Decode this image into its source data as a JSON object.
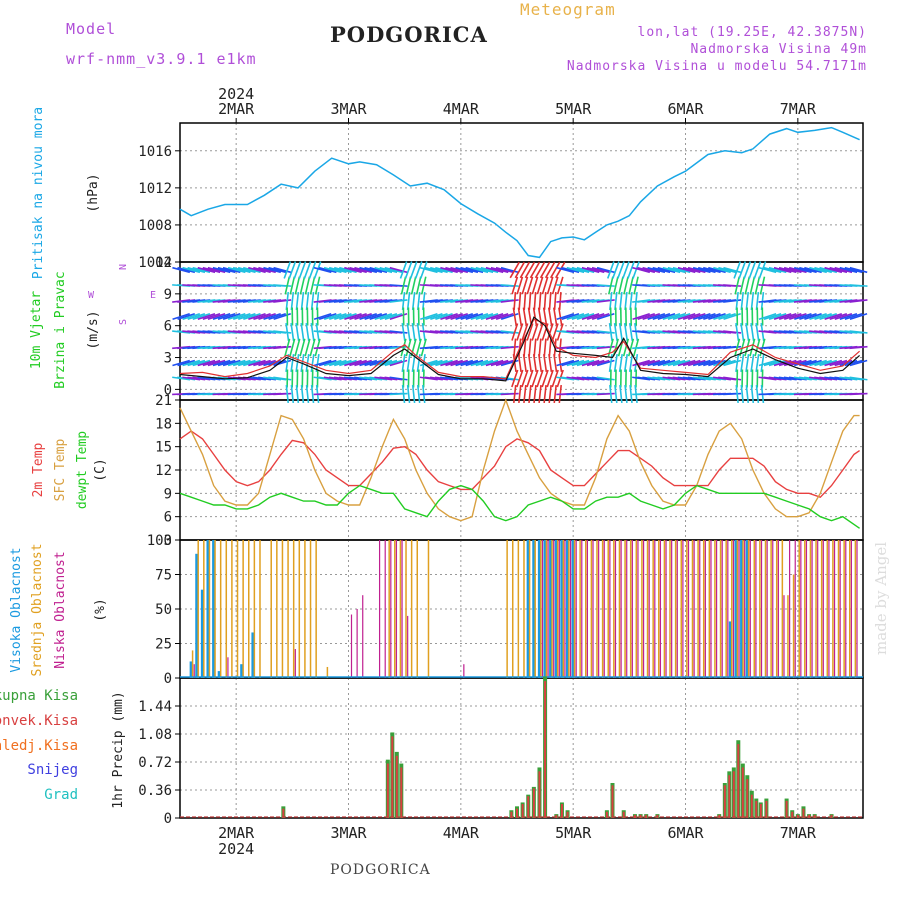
{
  "header": {
    "model_label": "Model",
    "model_name": "wrf-nmm_v3.9.1 e1km",
    "title": "PODGORICA",
    "meteogram": "Meteogram",
    "lonlat": "lon,lat (19.25E, 42.3875N)",
    "elevation": "Nadmorska Visina 49m",
    "model_elevation": "Nadmorska Visina u modelu 54.7171m"
  },
  "footer": {
    "station": "PODGORICA",
    "credit": "made by Angel"
  },
  "colors": {
    "pressure": "#1aa7e6",
    "temp2m": "#e84040",
    "sfc_temp": "#d8a040",
    "dewpt": "#22cc22",
    "high_cloud": "#1a9ae0",
    "mid_cloud": "#e0a020",
    "low_cloud": "#c02090",
    "total_precip": "#3aa03a",
    "convective": "#d84040",
    "frozen": "#f07020",
    "snow": "#4040e0",
    "hail": "#20c0c0"
  },
  "time_axis": {
    "year": "2024",
    "days": [
      "2MAR",
      "3MAR",
      "4MAR",
      "5MAR",
      "6MAR",
      "7MAR"
    ]
  },
  "chart_data": [
    {
      "type": "line",
      "panel": "pressure",
      "ylabel": "Pritisak na nivou mora",
      "unit": "(hPa)",
      "ylim": [
        1004,
        1019
      ],
      "yticks": [
        1004,
        1008,
        1012,
        1016
      ],
      "x_days": [
        1.5,
        1.6,
        1.75,
        1.9,
        2.1,
        2.25,
        2.4,
        2.55,
        2.7,
        2.85,
        3.0,
        3.1,
        3.25,
        3.4,
        3.55,
        3.7,
        3.85,
        4.0,
        4.15,
        4.3,
        4.4,
        4.5,
        4.6,
        4.7,
        4.8,
        4.9,
        5.0,
        5.1,
        5.2,
        5.3,
        5.4,
        5.5,
        5.6,
        5.75,
        5.9,
        6.0,
        6.2,
        6.35,
        6.5,
        6.6,
        6.75,
        6.9,
        7.0,
        7.15,
        7.3,
        7.4,
        7.55
      ],
      "series": [
        {
          "values": [
            1009.7,
            1009.0,
            1009.7,
            1010.2,
            1010.2,
            1011.2,
            1012.4,
            1012.0,
            1013.8,
            1015.2,
            1014.6,
            1014.8,
            1014.5,
            1013.4,
            1012.2,
            1012.5,
            1011.8,
            1010.3,
            1009.2,
            1008.2,
            1007.2,
            1006.3,
            1004.7,
            1004.5,
            1006.2,
            1006.6,
            1006.7,
            1006.4,
            1007.2,
            1008.0,
            1008.4,
            1009.0,
            1010.5,
            1012.2,
            1013.2,
            1013.8,
            1015.6,
            1016.0,
            1015.8,
            1016.2,
            1017.8,
            1018.4,
            1018.0,
            1018.2,
            1018.5,
            1018.0,
            1017.2
          ]
        }
      ]
    },
    {
      "type": "line",
      "panel": "wind",
      "ylabel": "10m Vjetar",
      "ylabel2": "Brzina i Pravac",
      "unit": "(m/s)",
      "compass": [
        "W",
        "N",
        "E",
        "S"
      ],
      "ylim": [
        -1,
        12
      ],
      "yticks": [
        0,
        3,
        6,
        9,
        12
      ],
      "x_days": [
        1.5,
        1.7,
        1.9,
        2.1,
        2.3,
        2.45,
        2.6,
        2.8,
        3.0,
        3.2,
        3.4,
        3.5,
        3.6,
        3.8,
        4.0,
        4.2,
        4.4,
        4.55,
        4.65,
        4.75,
        4.85,
        5.0,
        5.2,
        5.35,
        5.45,
        5.6,
        5.8,
        6.0,
        6.2,
        6.4,
        6.6,
        6.8,
        7.0,
        7.2,
        7.4,
        7.55
      ],
      "series": [
        {
          "values": [
            1.5,
            1.6,
            1.2,
            1.5,
            2.2,
            3.2,
            2.6,
            1.8,
            1.5,
            1.8,
            3.6,
            4.2,
            3.2,
            1.6,
            1.2,
            1.2,
            1.0,
            4.5,
            6.6,
            6.2,
            4.0,
            3.2,
            3.0,
            3.5,
            4.5,
            2.0,
            1.8,
            1.6,
            1.4,
            3.5,
            4.2,
            3.0,
            2.4,
            1.8,
            2.2,
            3.6
          ]
        },
        {
          "values": [
            1.4,
            1.2,
            1.0,
            1.1,
            1.8,
            3.0,
            2.4,
            1.5,
            1.3,
            1.5,
            3.2,
            3.8,
            3.0,
            1.4,
            1.0,
            1.0,
            0.8,
            4.2,
            6.8,
            6.0,
            3.6,
            3.4,
            3.2,
            3.0,
            4.8,
            1.8,
            1.5,
            1.4,
            1.2,
            3.0,
            3.8,
            2.8,
            2.0,
            1.5,
            1.8,
            3.2
          ]
        }
      ]
    },
    {
      "type": "line",
      "panel": "temperature",
      "ylabel": "2m Temp",
      "ylabel2": "SFC Temp",
      "ylabel3": "dewpt Temp",
      "unit": "(C)",
      "ylim": [
        3,
        21
      ],
      "yticks": [
        3,
        6,
        9,
        12,
        15,
        18,
        21
      ],
      "x_days": [
        1.5,
        1.6,
        1.7,
        1.8,
        1.9,
        2.0,
        2.1,
        2.2,
        2.3,
        2.4,
        2.5,
        2.6,
        2.7,
        2.8,
        2.9,
        3.0,
        3.1,
        3.2,
        3.3,
        3.4,
        3.5,
        3.6,
        3.7,
        3.8,
        3.9,
        4.0,
        4.1,
        4.2,
        4.3,
        4.4,
        4.5,
        4.6,
        4.7,
        4.8,
        4.9,
        5.0,
        5.1,
        5.2,
        5.3,
        5.4,
        5.5,
        5.6,
        5.7,
        5.8,
        5.9,
        6.0,
        6.1,
        6.2,
        6.3,
        6.4,
        6.5,
        6.6,
        6.7,
        6.8,
        6.9,
        7.0,
        7.1,
        7.2,
        7.3,
        7.4,
        7.5,
        7.55
      ],
      "series": [
        {
          "name": "2m Temp",
          "values": [
            16,
            17,
            16,
            14,
            12,
            10.5,
            10,
            10.5,
            12,
            14,
            15.8,
            15.5,
            14,
            12,
            11,
            10,
            10,
            11.5,
            13,
            14.8,
            15,
            14,
            12,
            10.5,
            10,
            9.5,
            9.5,
            11,
            12.5,
            15,
            16,
            15.5,
            14.5,
            12,
            11,
            10,
            10,
            11.5,
            13,
            14.5,
            14.5,
            13.5,
            12.5,
            11,
            10,
            10,
            10,
            10,
            12,
            13.5,
            13.5,
            13.5,
            12.5,
            10.5,
            9.5,
            9,
            9,
            8.5,
            10,
            12,
            14,
            14.5
          ]
        },
        {
          "name": "SFC Temp",
          "values": [
            20,
            17,
            14,
            10,
            8,
            7.5,
            7.5,
            9,
            14,
            19,
            18.5,
            16,
            12,
            9,
            8,
            7.5,
            7.5,
            11,
            15,
            18.5,
            16,
            12,
            9,
            7,
            6,
            5.5,
            6,
            12,
            17,
            21,
            17,
            14,
            11,
            9,
            8,
            7.5,
            7.5,
            11,
            16,
            19,
            17,
            13,
            10,
            8,
            7.5,
            7.5,
            10,
            14,
            17,
            18,
            16,
            12,
            9,
            7,
            6,
            6,
            6.5,
            9,
            13,
            17,
            19,
            19
          ]
        },
        {
          "name": "dewpt Temp",
          "values": [
            9,
            8.5,
            8,
            7.5,
            7.5,
            7,
            7,
            7.5,
            8.5,
            9,
            8.5,
            8,
            8,
            7.5,
            7.5,
            9,
            10,
            9.5,
            9,
            9,
            7,
            6.5,
            6,
            8,
            9.5,
            10,
            9.5,
            8,
            6,
            5.5,
            6,
            7.5,
            8,
            8.5,
            8,
            7,
            7,
            8,
            8.5,
            8.5,
            9,
            8,
            7.5,
            7,
            7.5,
            9,
            10,
            9.5,
            9,
            9,
            9,
            9,
            9,
            8.5,
            8,
            7.5,
            7,
            6,
            5.5,
            6,
            5,
            4.5
          ]
        }
      ]
    },
    {
      "type": "bar",
      "panel": "clouds",
      "ylabel": "Visoka Oblacnost",
      "ylabel2": "Srednja Oblacnost",
      "ylabel3": "Niska Oblacnost",
      "unit": "(%)",
      "ylim": [
        0,
        100
      ],
      "yticks": [
        0,
        25,
        50,
        75,
        100
      ],
      "x_days": [
        1.6,
        1.65,
        1.7,
        1.75,
        1.8,
        1.85,
        1.9,
        1.95,
        2.0,
        2.05,
        2.1,
        2.15,
        2.2,
        2.3,
        2.35,
        2.4,
        2.45,
        2.5,
        2.55,
        2.6,
        2.65,
        2.7,
        2.8,
        2.9,
        3.0,
        3.05,
        3.1,
        3.15,
        3.2,
        3.25,
        3.3,
        3.35,
        3.4,
        3.45,
        3.5,
        3.55,
        3.6,
        3.7,
        3.8,
        3.9,
        4.0,
        4.2,
        4.25,
        4.3,
        4.35,
        4.4,
        4.45,
        4.5,
        4.55,
        4.6,
        4.65,
        4.7,
        4.75,
        4.8,
        4.85,
        4.9,
        4.95,
        5.0,
        5.05,
        5.1,
        5.15,
        5.2,
        5.25,
        5.3,
        5.35,
        5.4,
        5.45,
        5.5,
        5.55,
        5.6,
        5.65,
        5.7,
        5.75,
        5.8,
        5.85,
        5.9,
        5.95,
        6.0,
        6.05,
        6.1,
        6.15,
        6.2,
        6.25,
        6.3,
        6.35,
        6.4,
        6.45,
        6.5,
        6.55,
        6.6,
        6.65,
        6.7,
        6.75,
        6.8,
        6.85,
        6.9,
        6.95,
        7.0,
        7.05,
        7.1,
        7.15,
        7.2,
        7.25,
        7.3,
        7.35,
        7.4,
        7.45,
        7.5
      ],
      "series": [
        {
          "name": "Visoka Oblacnost",
          "values": [
            12,
            90,
            64,
            100,
            100,
            5,
            0,
            0,
            0,
            10,
            0,
            33,
            0,
            0,
            0,
            0,
            0,
            0,
            0,
            0,
            0,
            0,
            0,
            0,
            0,
            0,
            0,
            0,
            0,
            0,
            0,
            0,
            0,
            0,
            0,
            0,
            0,
            0,
            0,
            0,
            0,
            0,
            0,
            0,
            0,
            0,
            0,
            0,
            0,
            100,
            100,
            100,
            100,
            100,
            100,
            100,
            100,
            100,
            0,
            0,
            0,
            0,
            0,
            0,
            0,
            0,
            0,
            0,
            0,
            0,
            0,
            0,
            0,
            0,
            0,
            0,
            0,
            0,
            0,
            0,
            0,
            0,
            0,
            0,
            0,
            41,
            100,
            100,
            100,
            0,
            0,
            0,
            0,
            0,
            0,
            0,
            0,
            0,
            0,
            0,
            0,
            0,
            0,
            0,
            0,
            0,
            0,
            0
          ]
        },
        {
          "name": "Srednja Oblacnost",
          "values": [
            20,
            100,
            100,
            100,
            100,
            100,
            100,
            100,
            100,
            100,
            100,
            100,
            100,
            100,
            100,
            100,
            100,
            100,
            100,
            100,
            100,
            100,
            8,
            0,
            0,
            0,
            0,
            0,
            0,
            0,
            0,
            100,
            100,
            100,
            100,
            100,
            100,
            100,
            0,
            0,
            0,
            0,
            0,
            0,
            0,
            100,
            100,
            100,
            100,
            100,
            100,
            100,
            100,
            100,
            100,
            100,
            100,
            100,
            100,
            100,
            100,
            100,
            100,
            100,
            100,
            100,
            100,
            100,
            100,
            100,
            100,
            100,
            100,
            100,
            100,
            100,
            100,
            100,
            100,
            100,
            100,
            100,
            100,
            100,
            100,
            100,
            100,
            100,
            100,
            100,
            100,
            100,
            100,
            100,
            100,
            60,
            75,
            100,
            100,
            100,
            100,
            100,
            100,
            100,
            100,
            100,
            100,
            100
          ]
        },
        {
          "name": "Niska Oblacnost",
          "values": [
            10,
            0,
            0,
            0,
            0,
            0,
            15,
            0,
            0,
            0,
            0,
            0,
            0,
            0,
            0,
            0,
            0,
            21,
            0,
            0,
            0,
            0,
            0,
            0,
            46,
            50,
            60,
            0,
            0,
            100,
            100,
            100,
            100,
            100,
            45,
            0,
            0,
            0,
            0,
            0,
            10,
            0,
            0,
            0,
            0,
            0,
            0,
            0,
            0,
            0,
            0,
            100,
            100,
            100,
            100,
            100,
            100,
            100,
            100,
            100,
            100,
            100,
            100,
            100,
            100,
            100,
            100,
            100,
            100,
            100,
            100,
            100,
            100,
            100,
            100,
            100,
            100,
            100,
            100,
            100,
            100,
            100,
            100,
            100,
            100,
            100,
            100,
            100,
            100,
            100,
            100,
            100,
            100,
            100,
            60,
            100,
            100,
            100,
            100,
            100,
            100,
            100,
            100,
            100,
            100,
            100,
            100,
            100
          ]
        }
      ]
    },
    {
      "type": "bar",
      "panel": "precip",
      "ylabel": "1hr Precip (mm)",
      "legend": [
        "Ukupna Kisa",
        "Konvek.Kisa",
        "Zaledj.Kisa",
        "Snijeg",
        "Grad"
      ],
      "ylim": [
        0,
        1.8
      ],
      "yticks": [
        0,
        0.36,
        0.72,
        1.08,
        1.44
      ],
      "x_days": [
        2.42,
        3.35,
        3.39,
        3.43,
        3.47,
        4.45,
        4.5,
        4.55,
        4.6,
        4.65,
        4.7,
        4.75,
        4.85,
        4.9,
        4.95,
        5.3,
        5.35,
        5.45,
        5.55,
        5.6,
        5.65,
        5.75,
        6.3,
        6.35,
        6.39,
        6.43,
        6.47,
        6.51,
        6.55,
        6.59,
        6.63,
        6.67,
        6.72,
        6.9,
        6.95,
        7.0,
        7.05,
        7.1,
        7.15,
        7.3
      ],
      "series": [
        {
          "name": "Ukupna Kisa",
          "values": [
            0.15,
            0.75,
            1.1,
            0.85,
            0.7,
            0.1,
            0.15,
            0.2,
            0.3,
            0.4,
            0.65,
            1.82,
            0.05,
            0.2,
            0.1,
            0.1,
            0.45,
            0.1,
            0.05,
            0.05,
            0.05,
            0.05,
            0.05,
            0.45,
            0.6,
            0.65,
            1.0,
            0.7,
            0.55,
            0.35,
            0.25,
            0.2,
            0.25,
            0.25,
            0.1,
            0.05,
            0.15,
            0.05,
            0.05,
            0.05
          ]
        },
        {
          "name": "Konvek.Kisa",
          "values": [
            0.12,
            0.7,
            1.05,
            0.8,
            0.65,
            0.08,
            0.12,
            0.18,
            0.28,
            0.38,
            0.6,
            1.76,
            0.04,
            0.18,
            0.08,
            0.08,
            0.42,
            0.08,
            0.04,
            0.04,
            0.04,
            0.04,
            0.04,
            0.42,
            0.55,
            0.6,
            0.95,
            0.65,
            0.5,
            0.3,
            0.22,
            0.18,
            0.22,
            0.22,
            0.08,
            0.04,
            0.12,
            0.04,
            0.04,
            0.04
          ]
        }
      ]
    }
  ]
}
